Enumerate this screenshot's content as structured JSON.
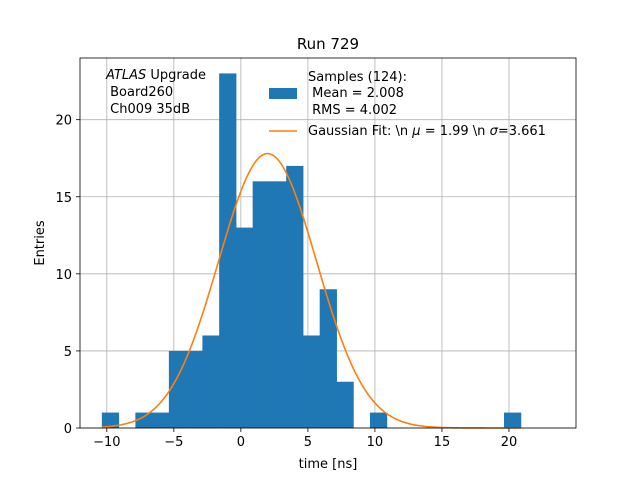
{
  "chart_data": {
    "type": "bar",
    "title": "Run 729",
    "xlabel": "time [ns]",
    "ylabel": "Entries",
    "xlim": [
      -12,
      25
    ],
    "ylim": [
      0,
      24
    ],
    "grid": true,
    "legend_placement": "top-right",
    "x_ticks": [
      -10,
      -5,
      0,
      5,
      10,
      15,
      20
    ],
    "x_tick_labels": [
      "−10",
      "−5",
      "0",
      "5",
      "10",
      "15",
      "20"
    ],
    "y_ticks": [
      0,
      5,
      10,
      15,
      20
    ],
    "y_tick_labels": [
      "0",
      "5",
      "10",
      "15",
      "20"
    ],
    "histogram": {
      "name": "Samples (124):",
      "color": "#1f77b4",
      "bins": [
        {
          "x0": -10.37,
          "x1": -9.12,
          "count": 1
        },
        {
          "x0": -9.12,
          "x1": -7.87,
          "count": 0
        },
        {
          "x0": -7.87,
          "x1": -6.62,
          "count": 1
        },
        {
          "x0": -6.62,
          "x1": -5.37,
          "count": 1
        },
        {
          "x0": -5.37,
          "x1": -4.12,
          "count": 5
        },
        {
          "x0": -4.12,
          "x1": -2.87,
          "count": 5
        },
        {
          "x0": -2.87,
          "x1": -1.62,
          "count": 6
        },
        {
          "x0": -1.62,
          "x1": -0.37,
          "count": 23
        },
        {
          "x0": -0.37,
          "x1": 0.88,
          "count": 13
        },
        {
          "x0": 0.88,
          "x1": 2.13,
          "count": 16
        },
        {
          "x0": 2.13,
          "x1": 3.38,
          "count": 16
        },
        {
          "x0": 3.38,
          "x1": 4.63,
          "count": 17
        },
        {
          "x0": 4.63,
          "x1": 5.88,
          "count": 6
        },
        {
          "x0": 5.88,
          "x1": 7.13,
          "count": 9
        },
        {
          "x0": 7.13,
          "x1": 8.38,
          "count": 3
        },
        {
          "x0": 8.38,
          "x1": 9.63,
          "count": 0
        },
        {
          "x0": 9.63,
          "x1": 10.88,
          "count": 1
        },
        {
          "x0": 19.63,
          "x1": 20.88,
          "count": 1
        }
      ]
    },
    "fit": {
      "name": "Gaussian Fit: \\n μ = 1.99 \\n σ=3.661",
      "color": "#ff7f0e",
      "mu": 1.99,
      "sigma": 3.661,
      "amplitude": 17.8,
      "x_range": [
        -10.37,
        20.88
      ]
    },
    "legend": {
      "hist_line1": "Samples (124):",
      "hist_line2": " Mean = 2.008",
      "hist_line3": " RMS = 4.002",
      "fit_prefix": "Gaussian Fit: \\n ",
      "fit_mu_symbol": "μ",
      "fit_mid": " = 1.99 \\n ",
      "fit_sigma_symbol": "σ",
      "fit_suffix": "=3.661"
    },
    "annotation": {
      "line1_italic": "ATLAS",
      "line1_rest": " Upgrade",
      "line2": " Board260",
      "line3": " Ch009 35dB"
    }
  }
}
